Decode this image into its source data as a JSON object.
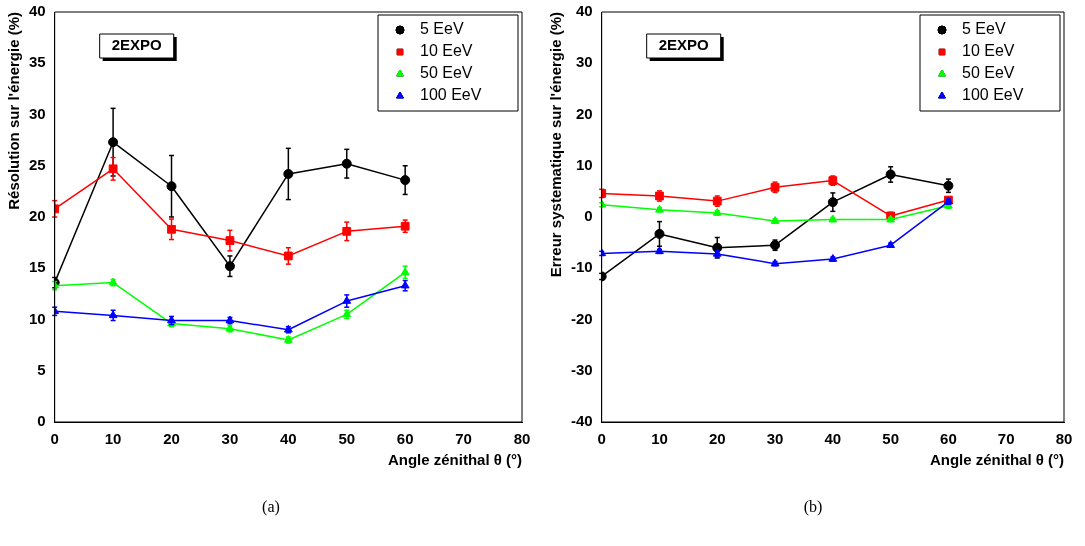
{
  "chart_data": [
    {
      "type": "line",
      "xlabel": "Angle zénithal θ (°)",
      "ylabel": "Résolution sur l'énergie (%)",
      "x": [
        0,
        10,
        20,
        30,
        40,
        50,
        60
      ],
      "xlim": [
        0,
        80
      ],
      "xticks": [
        0,
        10,
        20,
        30,
        40,
        50,
        60,
        70,
        80
      ],
      "ylim": [
        0,
        40
      ],
      "yticks": [
        0,
        5,
        10,
        15,
        20,
        25,
        30,
        35,
        40
      ],
      "grid": false,
      "legend": "top right",
      "annotations": [
        "2EXPO",
        "(a)"
      ],
      "series": [
        {
          "name": "5 EeV",
          "color": "#000000",
          "marker": "circle",
          "values": [
            13.6,
            27.3,
            23.0,
            15.2,
            24.2,
            25.2,
            23.6
          ],
          "errors": [
            0.5,
            3.3,
            3.0,
            1.0,
            2.5,
            1.4,
            1.4
          ]
        },
        {
          "name": "10 EeV",
          "color": "#ff0000",
          "marker": "square",
          "values": [
            20.8,
            24.7,
            18.8,
            17.7,
            16.2,
            18.6,
            19.1
          ],
          "errors": [
            0.8,
            1.1,
            1.0,
            1.0,
            0.8,
            0.9,
            0.6
          ]
        },
        {
          "name": "50 EeV",
          "color": "#00ff00",
          "marker": "triangle",
          "values": [
            13.3,
            13.6,
            9.6,
            9.1,
            8.0,
            10.5,
            14.6
          ],
          "errors": [
            0.4,
            0.3,
            0.3,
            0.3,
            0.3,
            0.4,
            0.6
          ]
        },
        {
          "name": "100 EeV",
          "color": "#0000ff",
          "marker": "triangle",
          "values": [
            10.8,
            10.4,
            9.9,
            9.9,
            9.0,
            11.8,
            13.3
          ],
          "errors": [
            0.4,
            0.5,
            0.4,
            0.3,
            0.3,
            0.6,
            0.5
          ]
        }
      ]
    },
    {
      "type": "line",
      "xlabel": "Angle zénithal θ (°)",
      "ylabel": "Erreur systematique sur l'énergie (%)",
      "x": [
        0,
        10,
        20,
        30,
        40,
        50,
        60
      ],
      "xlim": [
        0,
        80
      ],
      "xticks": [
        0,
        10,
        20,
        30,
        40,
        50,
        60,
        70,
        80
      ],
      "ylim": [
        -40,
        40
      ],
      "yticks": [
        -40,
        -30,
        -20,
        -10,
        0,
        10,
        20,
        30,
        40
      ],
      "grid": false,
      "legend": "top right",
      "annotations": [
        "2EXPO",
        "(b)"
      ],
      "series": [
        {
          "name": "5 EeV",
          "color": "#000000",
          "marker": "circle",
          "values": [
            -11.6,
            -3.3,
            -6.0,
            -5.5,
            2.9,
            8.3,
            6.1
          ],
          "errors": [
            0.6,
            2.4,
            2.0,
            1.0,
            1.8,
            1.5,
            1.3
          ]
        },
        {
          "name": "10 EeV",
          "color": "#ff0000",
          "marker": "square",
          "values": [
            4.6,
            4.1,
            3.1,
            5.8,
            7.1,
            0.2,
            3.3
          ],
          "errors": [
            0.8,
            1.0,
            1.0,
            1.0,
            0.9,
            0.7,
            0.6
          ]
        },
        {
          "name": "50 EeV",
          "color": "#00ff00",
          "marker": "triangle",
          "values": [
            2.4,
            1.4,
            0.8,
            -0.8,
            -0.5,
            -0.5,
            2.2
          ],
          "errors": [
            0.4,
            0.4,
            0.4,
            0.4,
            0.4,
            0.4,
            0.5
          ]
        },
        {
          "name": "100 EeV",
          "color": "#0000ff",
          "marker": "triangle",
          "values": [
            -7.1,
            -6.7,
            -7.2,
            -9.1,
            -8.2,
            -5.5,
            3.0
          ],
          "errors": [
            0.4,
            0.4,
            0.6,
            0.4,
            0.4,
            0.4,
            0.5
          ]
        }
      ]
    }
  ]
}
